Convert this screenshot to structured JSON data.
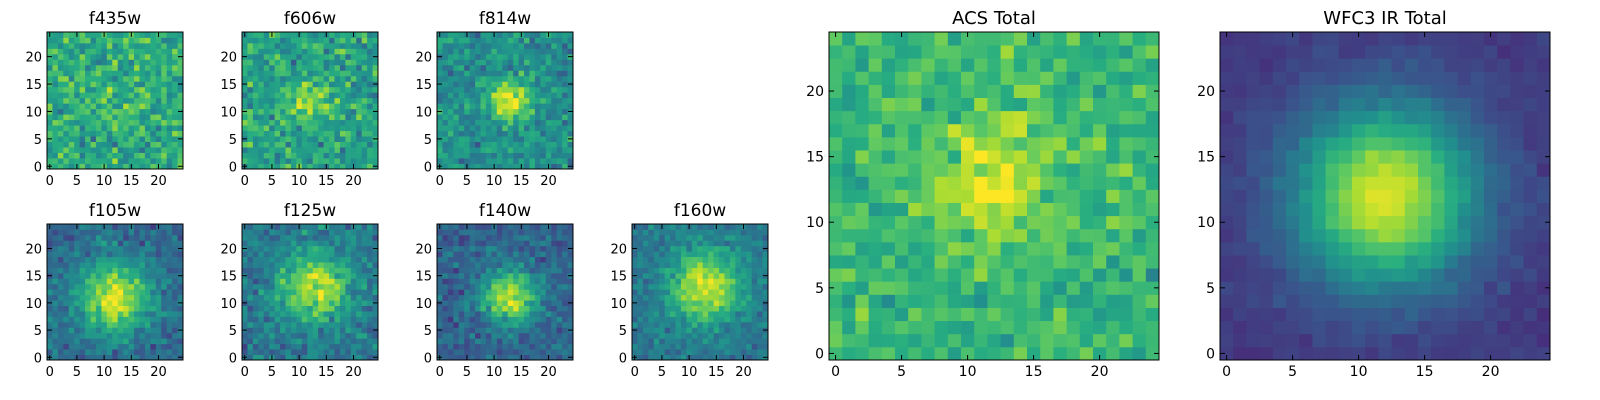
{
  "figure": {
    "background": "#ffffff",
    "colormap": "viridis",
    "axis_range": [
      -0.5,
      24.5
    ]
  },
  "chart_data": [
    {
      "type": "heatmap",
      "title": "f435w",
      "xlim": [
        -0.5,
        24.5
      ],
      "ylim": [
        -0.5,
        24.5
      ],
      "x_ticks": [
        0,
        5,
        10,
        15,
        20
      ],
      "y_ticks": [
        0,
        5,
        10,
        15,
        20
      ],
      "peak": [
        12,
        11
      ],
      "sigma": 3.0,
      "amplitude": 0.05,
      "noise": 0.2,
      "base": 0.62,
      "seed": 11
    },
    {
      "type": "heatmap",
      "title": "f606w",
      "xlim": [
        -0.5,
        24.5
      ],
      "ylim": [
        -0.5,
        24.5
      ],
      "x_ticks": [
        0,
        5,
        10,
        15,
        20
      ],
      "y_ticks": [
        0,
        5,
        10,
        15,
        20
      ],
      "peak": [
        12,
        12
      ],
      "sigma": 2.6,
      "amplitude": 0.3,
      "noise": 0.2,
      "base": 0.58,
      "seed": 23
    },
    {
      "type": "heatmap",
      "title": "f814w",
      "xlim": [
        -0.5,
        24.5
      ],
      "ylim": [
        -0.5,
        24.5
      ],
      "x_ticks": [
        0,
        5,
        10,
        15,
        20
      ],
      "y_ticks": [
        0,
        5,
        10,
        15,
        20
      ],
      "peak": [
        13,
        12
      ],
      "sigma": 2.6,
      "amplitude": 0.45,
      "noise": 0.17,
      "base": 0.5,
      "seed": 37
    },
    {
      "type": "heatmap",
      "title": "f105w",
      "xlim": [
        -0.5,
        24.5
      ],
      "ylim": [
        -0.5,
        24.5
      ],
      "x_ticks": [
        0,
        5,
        10,
        15,
        20
      ],
      "y_ticks": [
        0,
        5,
        10,
        15,
        20
      ],
      "peak": [
        12,
        11
      ],
      "sigma": 4.5,
      "amplitude": 0.6,
      "noise": 0.14,
      "base": 0.35,
      "seed": 41
    },
    {
      "type": "heatmap",
      "title": "f125w",
      "xlim": [
        -0.5,
        24.5
      ],
      "ylim": [
        -0.5,
        24.5
      ],
      "x_ticks": [
        0,
        5,
        10,
        15,
        20
      ],
      "y_ticks": [
        0,
        5,
        10,
        15,
        20
      ],
      "peak": [
        13,
        13
      ],
      "sigma": 4.5,
      "amplitude": 0.5,
      "noise": 0.15,
      "base": 0.4,
      "seed": 53
    },
    {
      "type": "heatmap",
      "title": "f140w",
      "xlim": [
        -0.5,
        24.5
      ],
      "ylim": [
        -0.5,
        24.5
      ],
      "x_ticks": [
        0,
        5,
        10,
        15,
        20
      ],
      "y_ticks": [
        0,
        5,
        10,
        15,
        20
      ],
      "peak": [
        13,
        11
      ],
      "sigma": 3.5,
      "amplitude": 0.6,
      "noise": 0.14,
      "base": 0.32,
      "seed": 67
    },
    {
      "type": "heatmap",
      "title": "f160w",
      "xlim": [
        -0.5,
        24.5
      ],
      "ylim": [
        -0.5,
        24.5
      ],
      "x_ticks": [
        0,
        5,
        10,
        15,
        20
      ],
      "y_ticks": [
        0,
        5,
        10,
        15,
        20
      ],
      "peak": [
        13,
        13
      ],
      "sigma": 4.5,
      "amplitude": 0.55,
      "noise": 0.12,
      "base": 0.4,
      "seed": 79
    },
    {
      "type": "heatmap",
      "title": "ACS Total",
      "xlim": [
        -0.5,
        24.5
      ],
      "ylim": [
        -0.5,
        24.5
      ],
      "x_ticks": [
        0,
        5,
        10,
        15,
        20
      ],
      "y_ticks": [
        0,
        5,
        10,
        15,
        20
      ],
      "peak": [
        12,
        13
      ],
      "sigma": 3.5,
      "amplitude": 0.3,
      "noise": 0.14,
      "base": 0.66,
      "seed": 97
    },
    {
      "type": "heatmap",
      "title": "WFC3 IR Total",
      "xlim": [
        -0.5,
        24.5
      ],
      "ylim": [
        -0.5,
        24.5
      ],
      "x_ticks": [
        0,
        5,
        10,
        15,
        20
      ],
      "y_ticks": [
        0,
        5,
        10,
        15,
        20
      ],
      "peak": [
        12,
        12
      ],
      "sigma": 4.8,
      "amplitude": 0.78,
      "noise": 0.04,
      "base": 0.17,
      "seed": 103
    }
  ]
}
